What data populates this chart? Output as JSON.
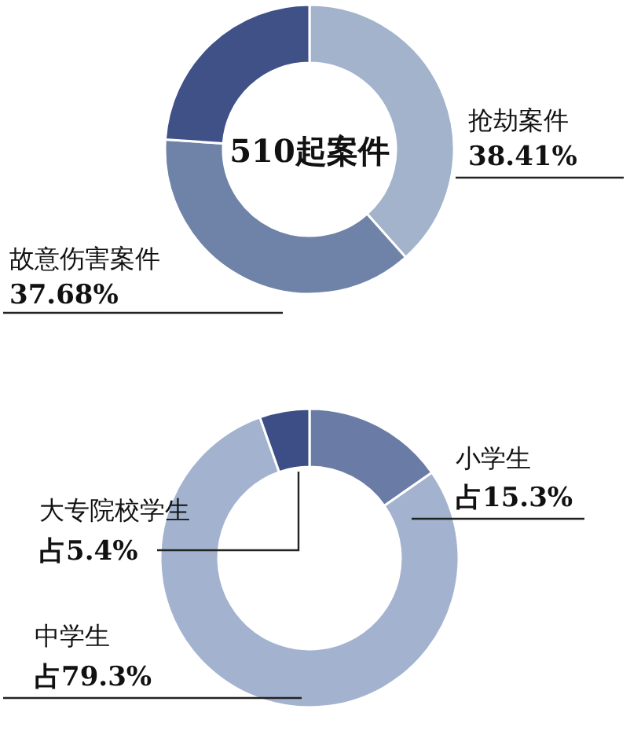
{
  "chart_data": [
    {
      "type": "donut",
      "categories": [
        "抢劫案件",
        "故意伤害案件",
        null
      ],
      "values": [
        38.41,
        37.68,
        23.91
      ],
      "value_labels": [
        "38.41%",
        "37.68%",
        null
      ],
      "colors": [
        "#a3b3cc",
        "#6f82a8",
        "#3f5187"
      ],
      "annotations": [
        "510起案件"
      ]
    },
    {
      "type": "donut",
      "categories": [
        "小学生",
        "中学生",
        "大专院校学生"
      ],
      "values": [
        15.3,
        79.3,
        5.4
      ],
      "value_labels": [
        "占15.3%",
        "占79.3%",
        "占5.4%"
      ],
      "colors": [
        "#6a7ca6",
        "#a3b3cf",
        "#3d4d85"
      ]
    }
  ]
}
